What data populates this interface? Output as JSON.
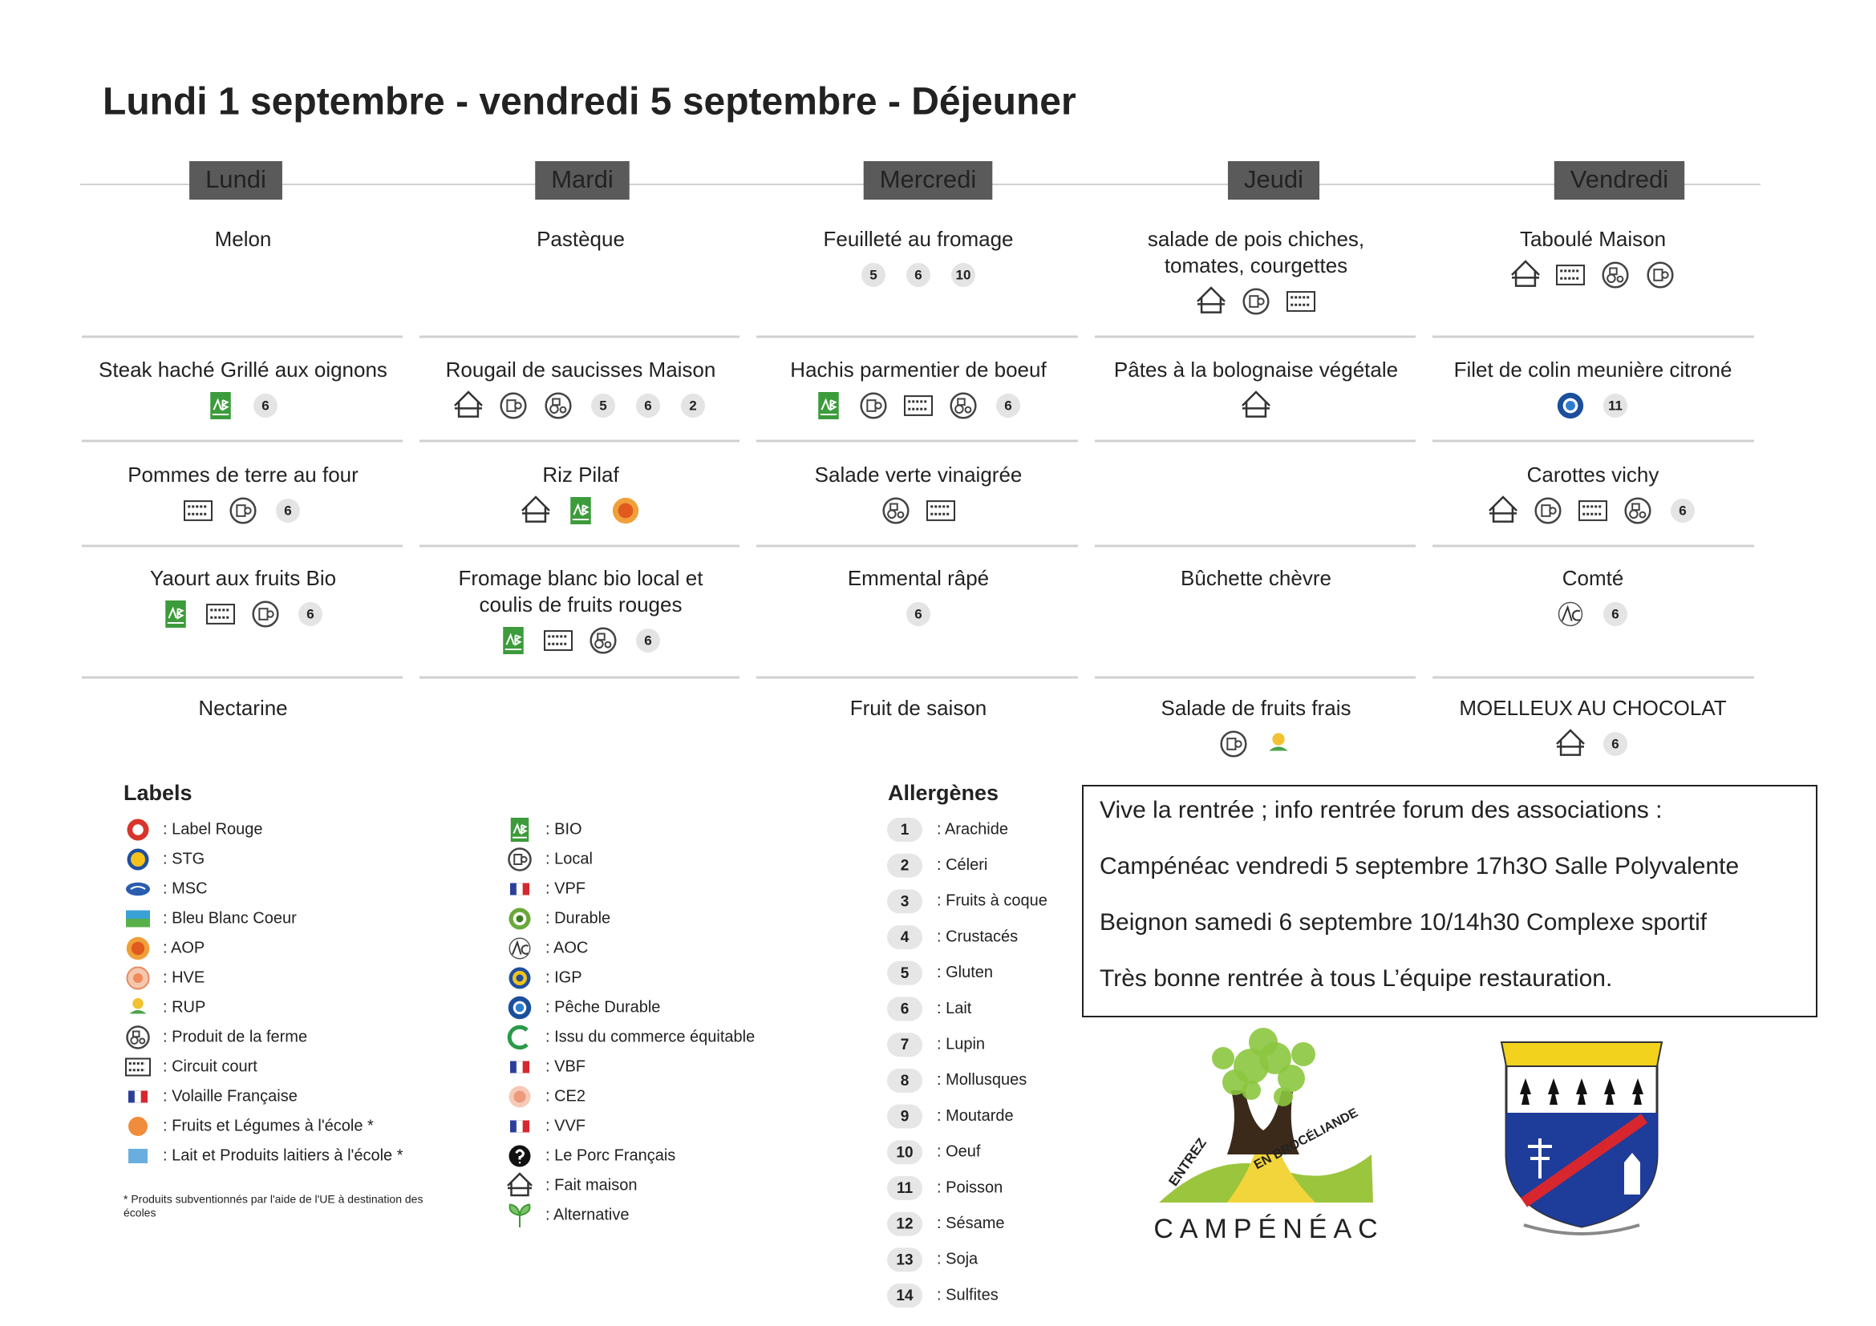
{
  "title": "Lundi 1 septembre - vendredi 5 septembre  - Déjeuner",
  "days": [
    {
      "name": "Lundi",
      "items": [
        {
          "lines": [
            "Melon"
          ]
        },
        {
          "lines": [
            "Steak haché Grillé aux oignons"
          ],
          "allergens": [
            6
          ]
        },
        {
          "lines": [
            "Pommes de terre au four"
          ],
          "allergens": [
            6
          ]
        },
        {
          "lines": [
            "Yaourt aux fruits Bio"
          ],
          "allergens": [
            6
          ]
        },
        {
          "lines": [
            "Nectarine"
          ]
        }
      ]
    },
    {
      "name": "Mardi",
      "items": [
        {
          "lines": [
            "Pastèque"
          ]
        },
        {
          "lines": [
            "Rougail de saucisses Maison"
          ],
          "allergens": [
            5,
            6,
            2
          ]
        },
        {
          "lines": [
            "Riz Pilaf"
          ]
        },
        {
          "lines": [
            "Fromage blanc bio local et",
            "coulis de fruits rouges"
          ],
          "allergens": [
            6
          ]
        },
        null
      ]
    },
    {
      "name": "Mercredi",
      "items": [
        {
          "lines": [
            "Feuilleté au fromage"
          ],
          "allergens": [
            5,
            6,
            10
          ]
        },
        {
          "lines": [
            "Hachis parmentier de boeuf"
          ],
          "allergens": [
            6
          ]
        },
        {
          "lines": [
            "Salade verte vinaigrée"
          ]
        },
        {
          "lines": [
            "Emmental râpé"
          ],
          "allergens": [
            6
          ]
        },
        {
          "lines": [
            "Fruit de saison"
          ]
        }
      ]
    },
    {
      "name": "Jeudi",
      "items": [
        {
          "lines": [
            "salade de pois chiches,",
            "tomates, courgettes"
          ]
        },
        {
          "lines": [
            "Pâtes à la bolognaise végétale"
          ]
        },
        null,
        {
          "lines": [
            "Bûchette chèvre"
          ]
        },
        {
          "lines": [
            "Salade de fruits frais"
          ]
        }
      ]
    },
    {
      "name": "Vendredi",
      "items": [
        {
          "lines": [
            "Taboulé Maison"
          ]
        },
        {
          "lines": [
            "Filet de colin meunière citroné"
          ],
          "allergens": [
            11
          ]
        },
        {
          "lines": [
            "Carottes vichy"
          ],
          "allergens": [
            6
          ]
        },
        {
          "lines": [
            "Comté"
          ],
          "allergens": [
            6
          ]
        },
        {
          "lines": [
            "MOELLEUX AU CHOCOLAT"
          ],
          "allergens": [
            6
          ]
        }
      ]
    }
  ],
  "labels": {
    "title": "Labels",
    "left": [
      ": Label Rouge",
      ": STG",
      ": MSC",
      ": Bleu Blanc Coeur",
      ": AOP",
      ": HVE",
      ": RUP",
      ": Produit de la ferme",
      ": Circuit court",
      ": Volaille Française",
      ": Fruits et Légumes à l'école *",
      ": Lait et Produits laitiers à l'école *"
    ],
    "right": [
      ": BIO",
      ": Local",
      ": VPF",
      ": Durable",
      ": AOC",
      ": IGP",
      ": Pêche Durable",
      ": Issu du commerce équitable",
      ": VBF",
      ": CE2",
      ": VVF",
      ": Le Porc Français",
      ": Fait maison",
      ": Alternative"
    ],
    "note": [
      "* Produits subventionnés par l'aide de l'UE à destination des",
      "écoles"
    ]
  },
  "allergens": {
    "title": "Allergènes",
    "items": [
      {
        "number": 1,
        "name": ": Arachide"
      },
      {
        "number": 2,
        "name": ": Céleri"
      },
      {
        "number": 3,
        "name": ": Fruits à coque"
      },
      {
        "number": 4,
        "name": ": Crustacés"
      },
      {
        "number": 5,
        "name": ": Gluten"
      },
      {
        "number": 6,
        "name": ": Lait"
      },
      {
        "number": 7,
        "name": ": Lupin"
      },
      {
        "number": 8,
        "name": ": Mollusques"
      },
      {
        "number": 9,
        "name": ": Moutarde"
      },
      {
        "number": 10,
        "name": ": Oeuf"
      },
      {
        "number": 11,
        "name": ": Poisson"
      },
      {
        "number": 12,
        "name": ": Sésame"
      },
      {
        "number": 13,
        "name": ": Soja"
      },
      {
        "number": 14,
        "name": ": Sulfites"
      }
    ]
  },
  "info": {
    "lines": [
      "Vive la rentrée ; info rentrée forum des associations :",
      "Campénéac vendredi 5 septembre 17h3O Salle Polyvalente",
      "Beignon samedi 6 septembre 10/14h30 Complexe sportif",
      "Très bonne rentrée à tous L’équipe restauration."
    ]
  },
  "logo": {
    "left": "ENTREZ",
    "right": "EN BROCÉLIANDE",
    "name": "CAMPÉNÉAC"
  }
}
